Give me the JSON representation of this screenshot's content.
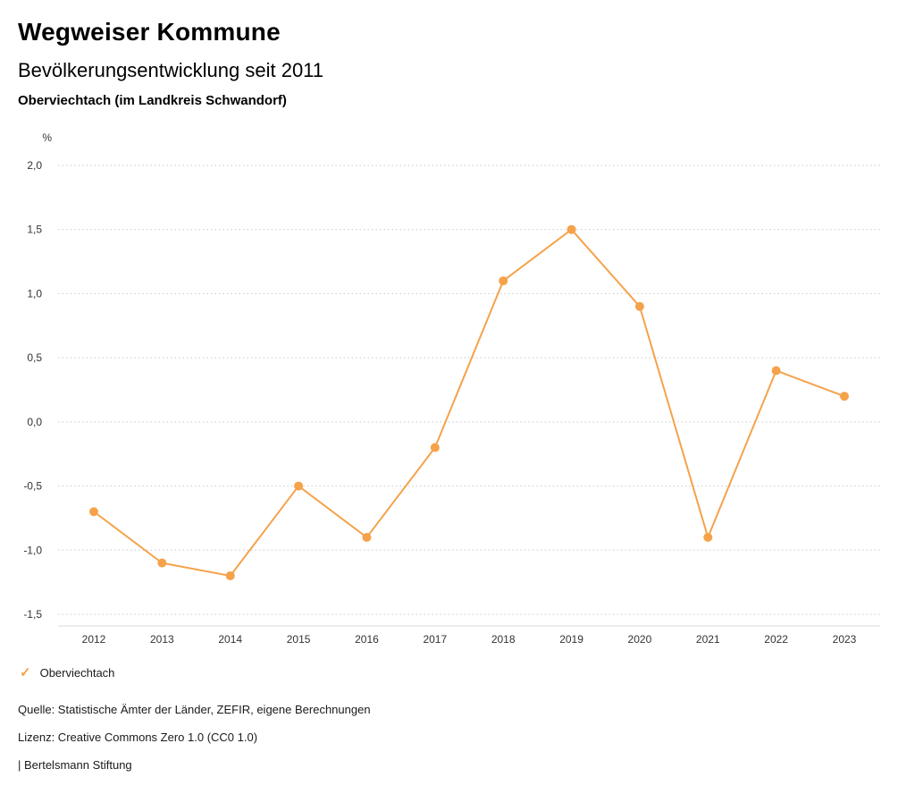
{
  "header": {
    "title": "Wegweiser Kommune",
    "subtitle": "Bevölkerungsentwicklung seit 2011",
    "region": "Oberviechtach (im Landkreis Schwandorf)"
  },
  "chart_data": {
    "type": "line",
    "unit_label": "%",
    "categories": [
      "2012",
      "2013",
      "2014",
      "2015",
      "2016",
      "2017",
      "2018",
      "2019",
      "2020",
      "2021",
      "2022",
      "2023"
    ],
    "series": [
      {
        "name": "Oberviechtach",
        "values": [
          -0.7,
          -1.1,
          -1.2,
          -0.5,
          -0.9,
          -0.2,
          1.1,
          1.5,
          0.9,
          -0.9,
          0.4,
          0.2
        ],
        "color": "#F5A24B"
      }
    ],
    "ylim": [
      -1.5,
      2.0
    ],
    "ytick_step": 0.5,
    "ytick_labels": [
      "2,0",
      "1,5",
      "1,0",
      "0,5",
      "0,0",
      "-0,5",
      "-1,0",
      "-1,5"
    ],
    "grid": "dotted-horizontal",
    "legend_position": "bottom-left",
    "colors": {
      "line": "#F5A24B",
      "grid": "#c8c8c8",
      "axis": "#d9d9d9",
      "tick_text": "#333333"
    }
  },
  "legend": {
    "items": [
      {
        "label": "Oberviechtach",
        "color": "#F5A24B",
        "marker": "check"
      }
    ],
    "check_glyph": "✓"
  },
  "footer": {
    "source": "Quelle: Statistische Ämter der Länder, ZEFIR, eigene Berechnungen",
    "license": "Lizenz: Creative Commons Zero 1.0 (CC0 1.0)",
    "attribution": "| Bertelsmann Stiftung"
  }
}
